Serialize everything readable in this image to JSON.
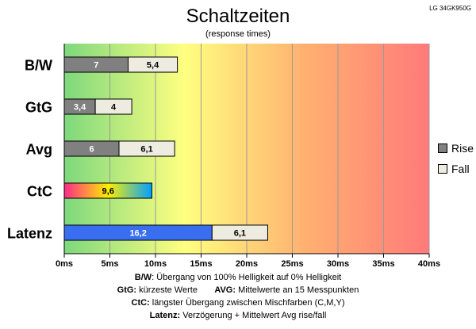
{
  "chart_data": {
    "type": "bar",
    "orientation": "horizontal",
    "stacked": true,
    "title": "Schaltzeiten",
    "subtitle": "(response times)",
    "corner_label": "LG 34GK950G",
    "categories": [
      "B/W",
      "GtG",
      "Avg",
      "CtC",
      "Latenz"
    ],
    "series": [
      {
        "name": "Rise",
        "values": [
          7,
          3.4,
          6,
          9.6,
          16.2
        ],
        "labels": [
          "7",
          "3,4",
          "6",
          "9,6",
          "16,2"
        ],
        "color": "#808080"
      },
      {
        "name": "Fall",
        "values": [
          5.4,
          4,
          6.1,
          null,
          6.1
        ],
        "labels": [
          "5,4",
          "4",
          "6,1",
          "",
          "6,1"
        ],
        "color": "#eeece1"
      }
    ],
    "xlim": [
      0,
      40
    ],
    "xticks": [
      "0ms",
      "5ms",
      "10ms",
      "15ms",
      "20ms",
      "25ms",
      "30ms",
      "35ms",
      "40ms"
    ],
    "grid": true,
    "legend_position": "right",
    "background_gradient": [
      "#7dd87d",
      "#ffff80",
      "#ffb070",
      "#ff7a7a"
    ],
    "special_colors": {
      "ctc_gradient": [
        "#ff2a8a",
        "#ffee00",
        "#00a0ff"
      ],
      "latenz": "#3a6ef0"
    }
  },
  "legend": {
    "rise": "Rise",
    "fall": "Fall"
  },
  "footer": {
    "line1_key": "B/W",
    "line1_text": ":  Übergang von 100% Helligkeit auf 0% Helligkeit",
    "line2a_key": "GtG:",
    "line2a_text": " kürzeste  Werte",
    "line2b_key": "AVG:",
    "line2b_text": " Mittelwerte  an 15 Messpunkten",
    "line3_key": "CtC:",
    "line3_text": " längster Übergang  zwischen Mischfarben (C,M,Y)",
    "line4_key": "Latenz:",
    "line4_text": " Verzögerung  + Mittelwert  Avg rise/fall"
  }
}
